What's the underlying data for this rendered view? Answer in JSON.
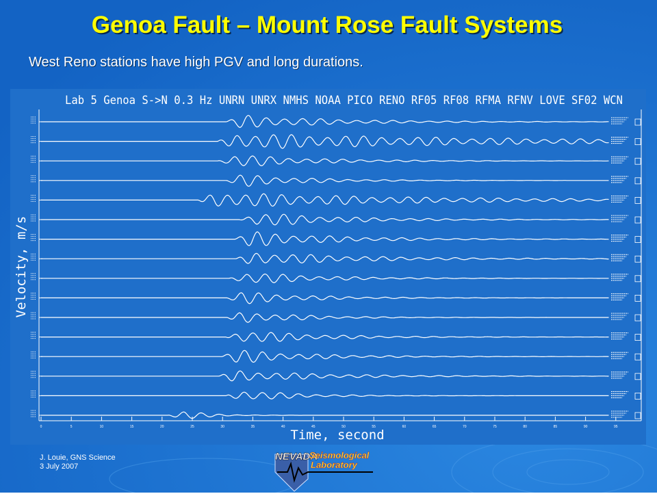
{
  "slide": {
    "title": "Genoa Fault – Mount Rose Fault Systems",
    "subtitle": "West Reno stations have high PGV and long durations.",
    "figure": {
      "header": "Lab 5 Genoa S->N 0.3 Hz UNRN UNRX NMHS NOAA PICO RENO RF05 RF08 RFMA RFNV LOVE SF02 WCN",
      "y_label": "Velocity, m/s",
      "x_label": "Time, second",
      "x_ticks": [
        "0",
        "5",
        "10",
        "15",
        "20",
        "25",
        "30",
        "35",
        "40",
        "45",
        "50",
        "55",
        "60",
        "65",
        "70",
        "75",
        "80",
        "85",
        "90",
        "95"
      ]
    },
    "footer": {
      "author": "J. Louie, GNS Science",
      "date": "3 July 2007"
    },
    "logo": {
      "state": "NEVADA",
      "line1": "Seismological",
      "line2": "Laboratory"
    }
  }
}
